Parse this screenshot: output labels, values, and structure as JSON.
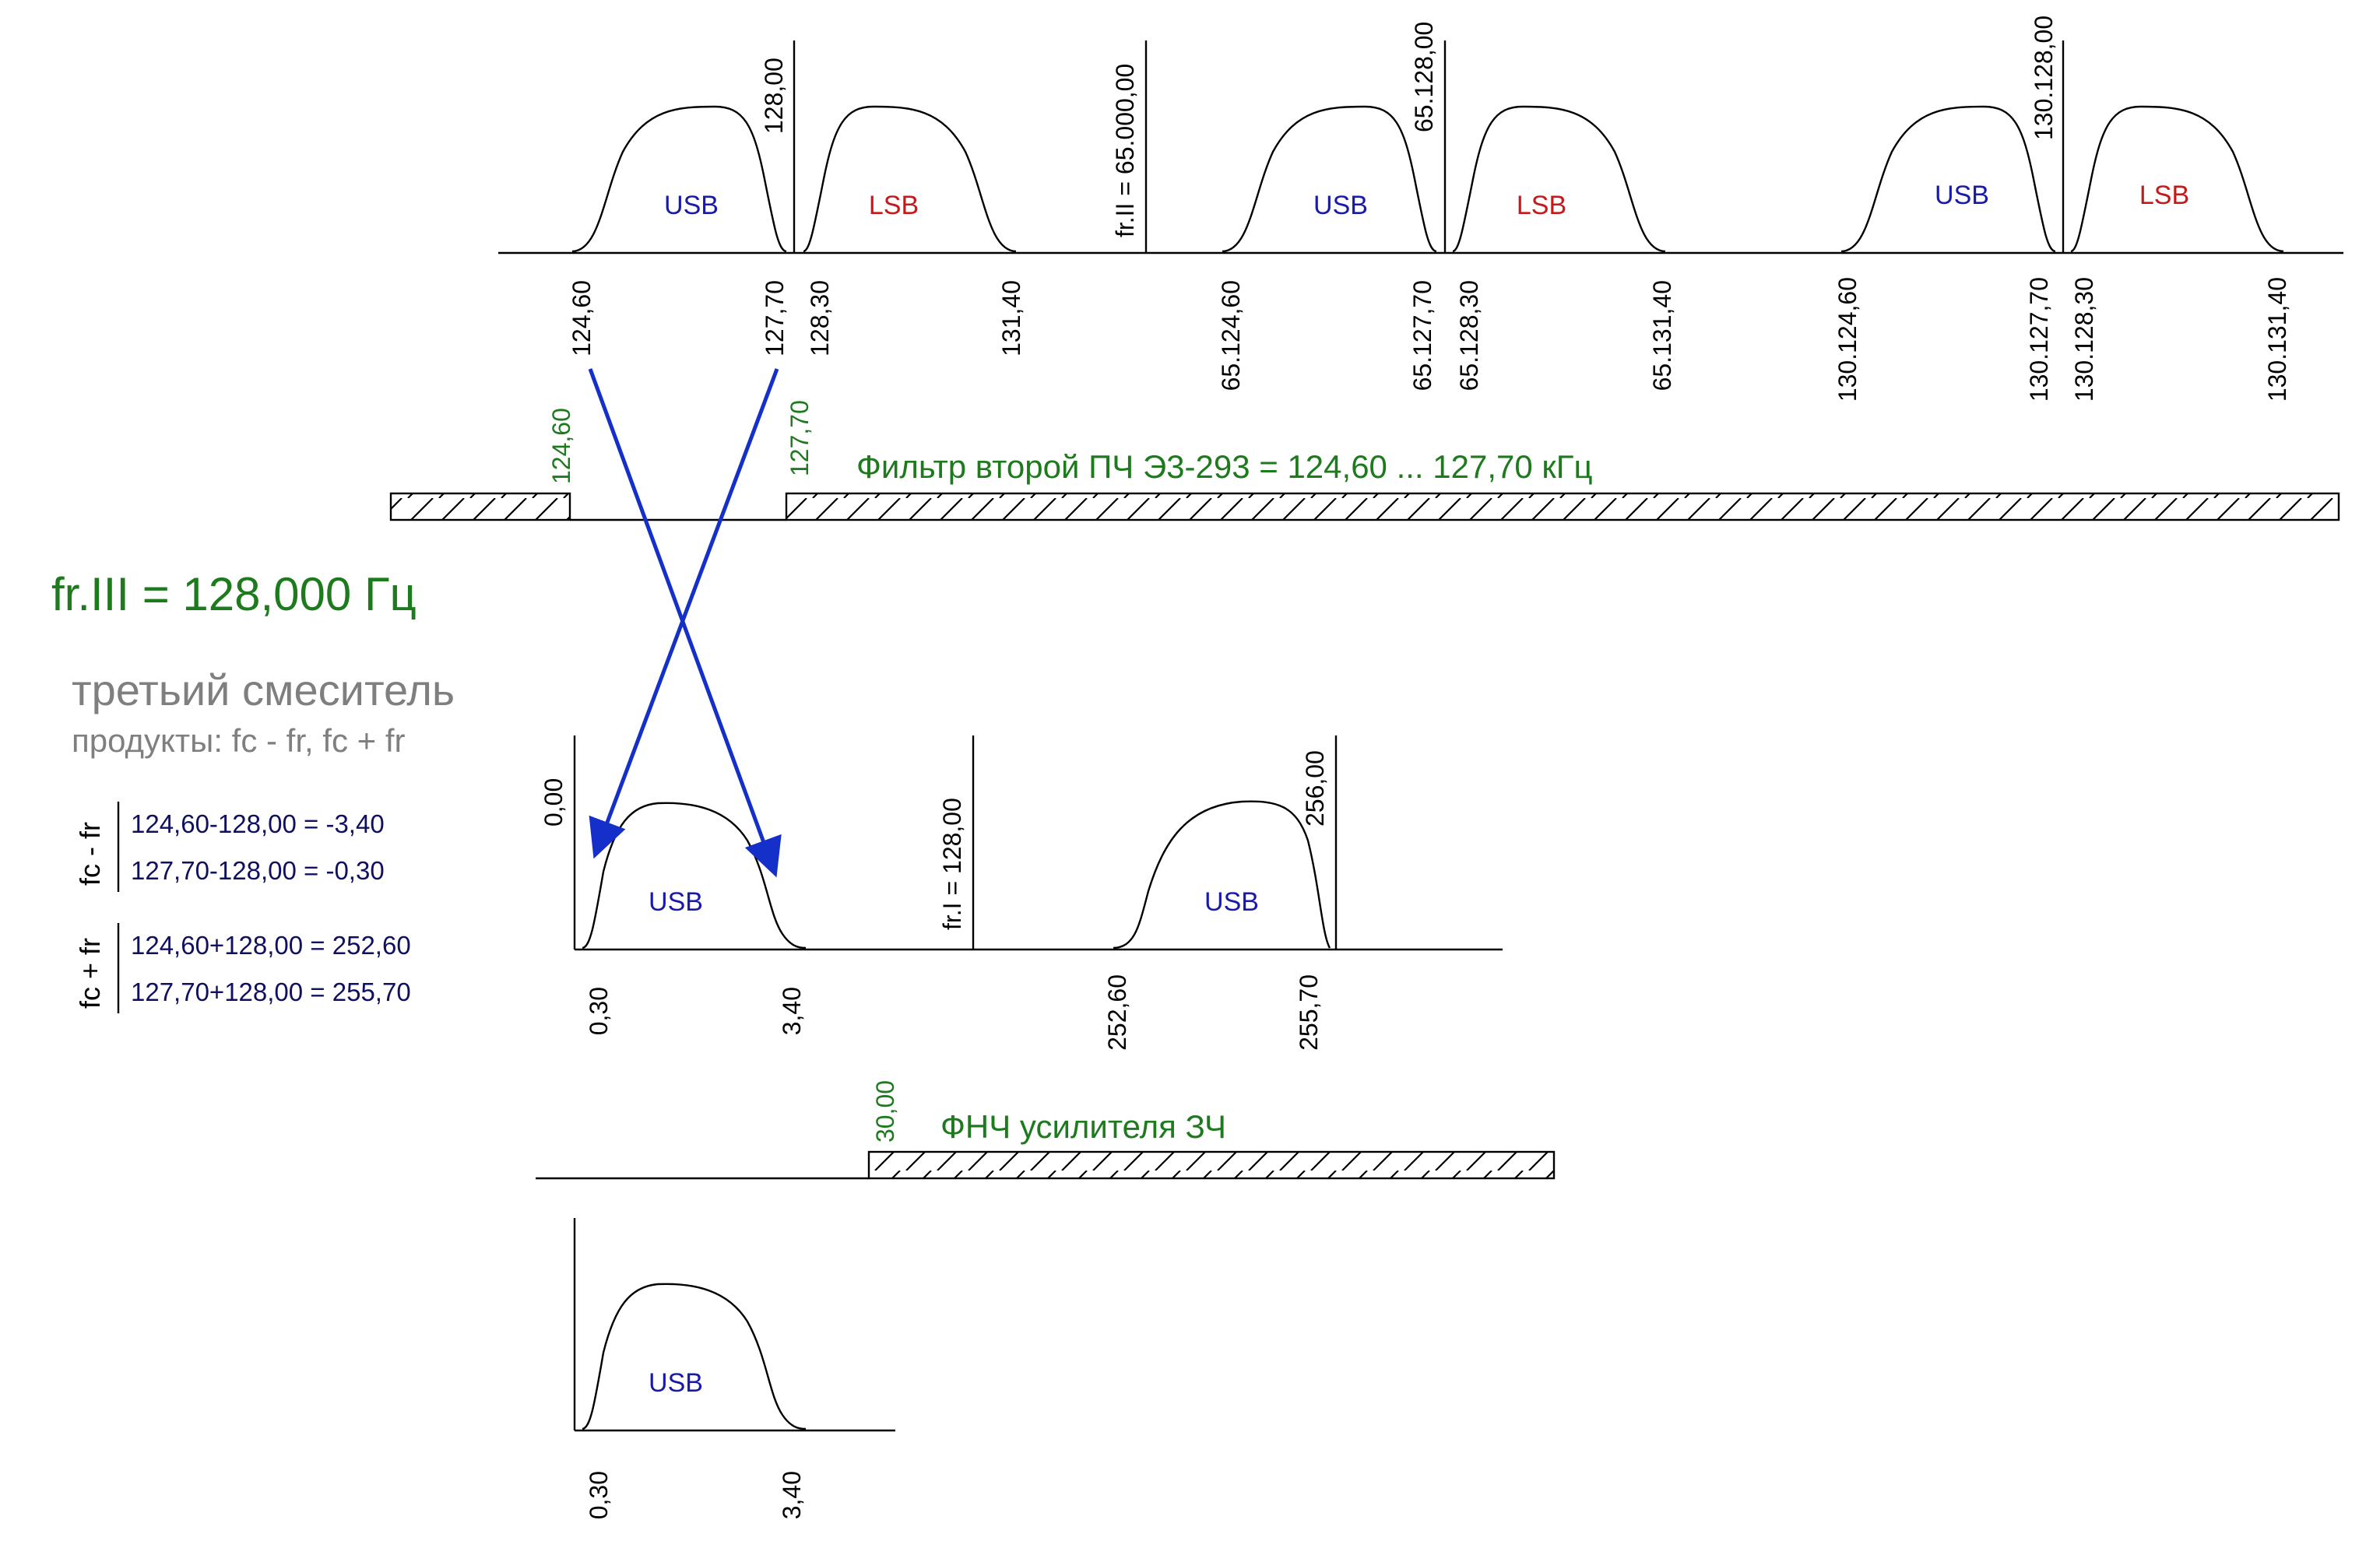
{
  "top_spectrum": {
    "sidebands": [
      "USB",
      "LSB",
      "USB",
      "LSB",
      "USB",
      "LSB"
    ],
    "marker_labels": [
      "128,00",
      "fr.II = 65.000,00",
      "65.128,00",
      "130.128,00"
    ],
    "freq_labels": [
      "124,60",
      "127,70",
      "128,30",
      "131,40",
      "65.124,60",
      "65.127,70",
      "65.128,30",
      "65.131,40",
      "130.124,60",
      "130.127,70",
      "130.128,30",
      "130.131,40"
    ]
  },
  "filter2": {
    "edge_low": "124,60",
    "edge_high": "127,70",
    "caption": "Фильтр второй ПЧ Э3-293 = 124,60 ... 127,70 кГц"
  },
  "heading": "fr.III = 128,000 Гц",
  "mixer": {
    "title": "третьий смеситель",
    "products": "продукты: fc - fr, fc + fr"
  },
  "calc": {
    "diff_label": "fc - fr",
    "diff_lines": [
      "124,60-128,00 = -3,40",
      "127,70-128,00 = -0,30"
    ],
    "sum_label": "fc + fr",
    "sum_lines": [
      "124,60+128,00 = 252,60",
      "127,70+128,00 = 255,70"
    ]
  },
  "mid_spectrum": {
    "sidebands": [
      "USB",
      "USB"
    ],
    "marker_labels": [
      "0,00",
      "fr.I = 128,00",
      "256,00"
    ],
    "freq_labels": [
      "0,30",
      "3,40",
      "252,60",
      "255,70"
    ]
  },
  "lpf": {
    "edge": "30,00",
    "caption": "ФНЧ усилителя ЗЧ"
  },
  "bottom_spectrum": {
    "sidebands": [
      "USB"
    ],
    "freq_labels": [
      "0,30",
      "3,40"
    ]
  },
  "colors": {
    "usb": "#1a1aa8",
    "lsb": "#c41a1a",
    "green": "#1d7a1d",
    "arrow": "#1530c8",
    "gray": "#7f7f7f"
  }
}
